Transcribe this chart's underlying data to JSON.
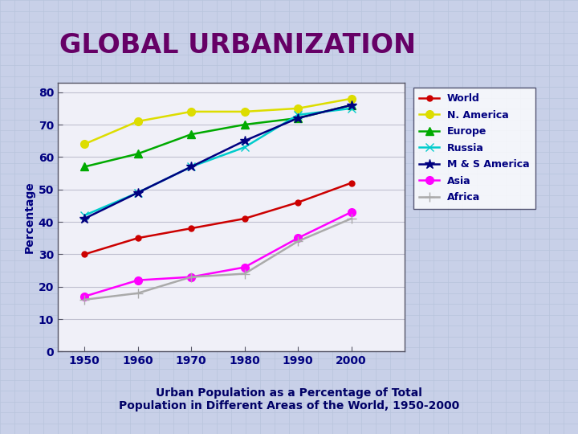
{
  "years": [
    1950,
    1960,
    1970,
    1980,
    1990,
    2000
  ],
  "series": [
    {
      "name": "World",
      "values": [
        30,
        35,
        38,
        41,
        46,
        52
      ],
      "color": "#cc0000",
      "marker": "o",
      "ms": 5,
      "lw": 1.8
    },
    {
      "name": "N. America",
      "values": [
        64,
        71,
        74,
        74,
        75,
        78
      ],
      "color": "#dddd00",
      "marker": "o",
      "ms": 7,
      "lw": 1.8
    },
    {
      "name": "Europe",
      "values": [
        57,
        61,
        67,
        70,
        72,
        76
      ],
      "color": "#00aa00",
      "marker": "^",
      "ms": 7,
      "lw": 1.8
    },
    {
      "name": "Russia",
      "values": [
        42,
        49,
        57,
        63,
        73,
        75
      ],
      "color": "#00cccc",
      "marker": "x",
      "ms": 7,
      "lw": 1.8
    },
    {
      "name": "M & S America",
      "values": [
        41,
        49,
        57,
        65,
        72,
        76
      ],
      "color": "#000080",
      "marker": "*",
      "ms": 9,
      "lw": 1.8
    },
    {
      "name": "Asia",
      "values": [
        17,
        22,
        23,
        26,
        35,
        43
      ],
      "color": "#ff00ff",
      "marker": "o",
      "ms": 7,
      "lw": 1.8
    },
    {
      "name": "Africa",
      "values": [
        16,
        18,
        23,
        24,
        34,
        41
      ],
      "color": "#aaaaaa",
      "marker": "+",
      "ms": 8,
      "lw": 1.8
    }
  ],
  "xlim": [
    1945,
    2010
  ],
  "ylim": [
    0,
    83
  ],
  "yticks": [
    0,
    10,
    20,
    30,
    40,
    50,
    60,
    70,
    80
  ],
  "xticks": [
    1950,
    1960,
    1970,
    1980,
    1990,
    2000
  ],
  "ylabel": "Percentage",
  "bg_color": "#c8d0e8",
  "plot_bg": "#f0f0f8",
  "title": "GLOBAL URBANIZATION",
  "title_bg": "#ffff99",
  "title_fg": "#660066",
  "title_border": "#333366",
  "subtitle": "Urban Population as a Percentage of Total\nPopulation in Different Areas of the World, 1950-2000",
  "subtitle_fg": "#000066",
  "subtitle_bg": "#ffffff",
  "subtitle_border": "#333366",
  "tick_color": "#000080",
  "axis_color": "#555566",
  "grid_color": "#c0c0d0",
  "legend_text_color": "#000080"
}
